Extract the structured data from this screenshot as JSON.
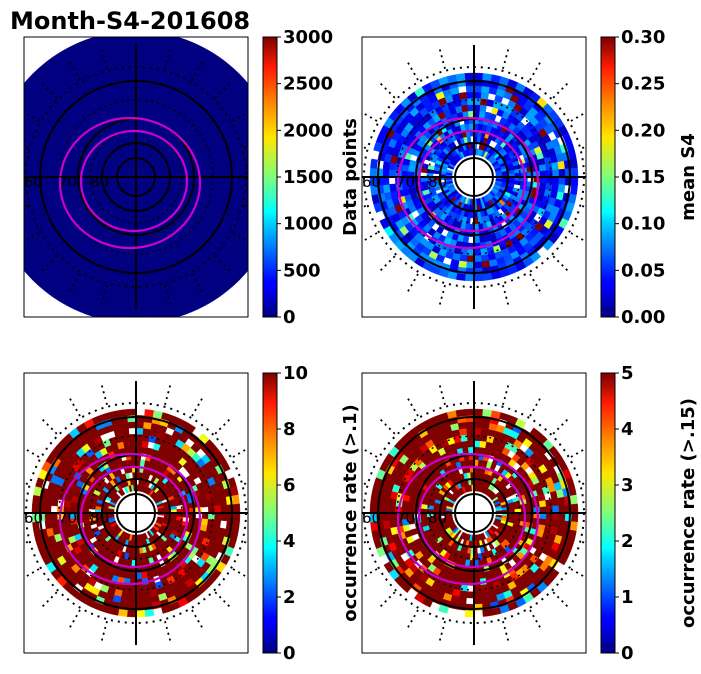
{
  "figure": {
    "title": "Month-S4-201608"
  },
  "chart_data": [
    {
      "type": "heatmap",
      "projection": "polar",
      "colormap": "jet",
      "colorbar_label": "Data points",
      "clim": [
        0,
        3000
      ],
      "colorbar_ticks": [
        "0",
        "500",
        "1000",
        "1500",
        "2000",
        "2500",
        "3000"
      ],
      "colorbar_tick_values": [
        0,
        500,
        1000,
        1500,
        2000,
        2500,
        3000
      ],
      "latitude_labels": [
        "60",
        "70",
        "80"
      ],
      "coverage": "full",
      "typical_value": 0,
      "high_fraction": 0.0,
      "grid": true
    },
    {
      "type": "heatmap",
      "projection": "polar",
      "colormap": "jet",
      "colorbar_label": "mean S4",
      "clim": [
        0.0,
        0.3
      ],
      "colorbar_ticks": [
        "0.00",
        "0.05",
        "0.10",
        "0.15",
        "0.20",
        "0.25",
        "0.30"
      ],
      "colorbar_tick_values": [
        0.0,
        0.05,
        0.1,
        0.15,
        0.2,
        0.25,
        0.3
      ],
      "latitude_labels": [
        "60",
        "70",
        "80"
      ],
      "coverage": "annular",
      "typical_value": 0.08,
      "high_fraction": 0.04,
      "grid": true
    },
    {
      "type": "heatmap",
      "projection": "polar",
      "colormap": "jet",
      "colorbar_label": "occurrence rate (>.1)",
      "clim": [
        0,
        10
      ],
      "colorbar_ticks": [
        "0",
        "2",
        "4",
        "6",
        "8",
        "10"
      ],
      "colorbar_tick_values": [
        0,
        2,
        4,
        6,
        8,
        10
      ],
      "latitude_labels": [
        "60",
        "70",
        "80"
      ],
      "coverage": "annular",
      "typical_value": 10,
      "high_fraction": 0.7,
      "grid": true
    },
    {
      "type": "heatmap",
      "projection": "polar",
      "colormap": "jet",
      "colorbar_label": "occurrence rate (>.15)",
      "clim": [
        0,
        5
      ],
      "colorbar_ticks": [
        "0",
        "1",
        "2",
        "3",
        "4",
        "5"
      ],
      "colorbar_tick_values": [
        0,
        1,
        2,
        3,
        4,
        5
      ],
      "latitude_labels": [
        "60",
        "70",
        "80"
      ],
      "coverage": "annular",
      "typical_value": 5,
      "high_fraction": 0.65,
      "grid": true
    }
  ]
}
